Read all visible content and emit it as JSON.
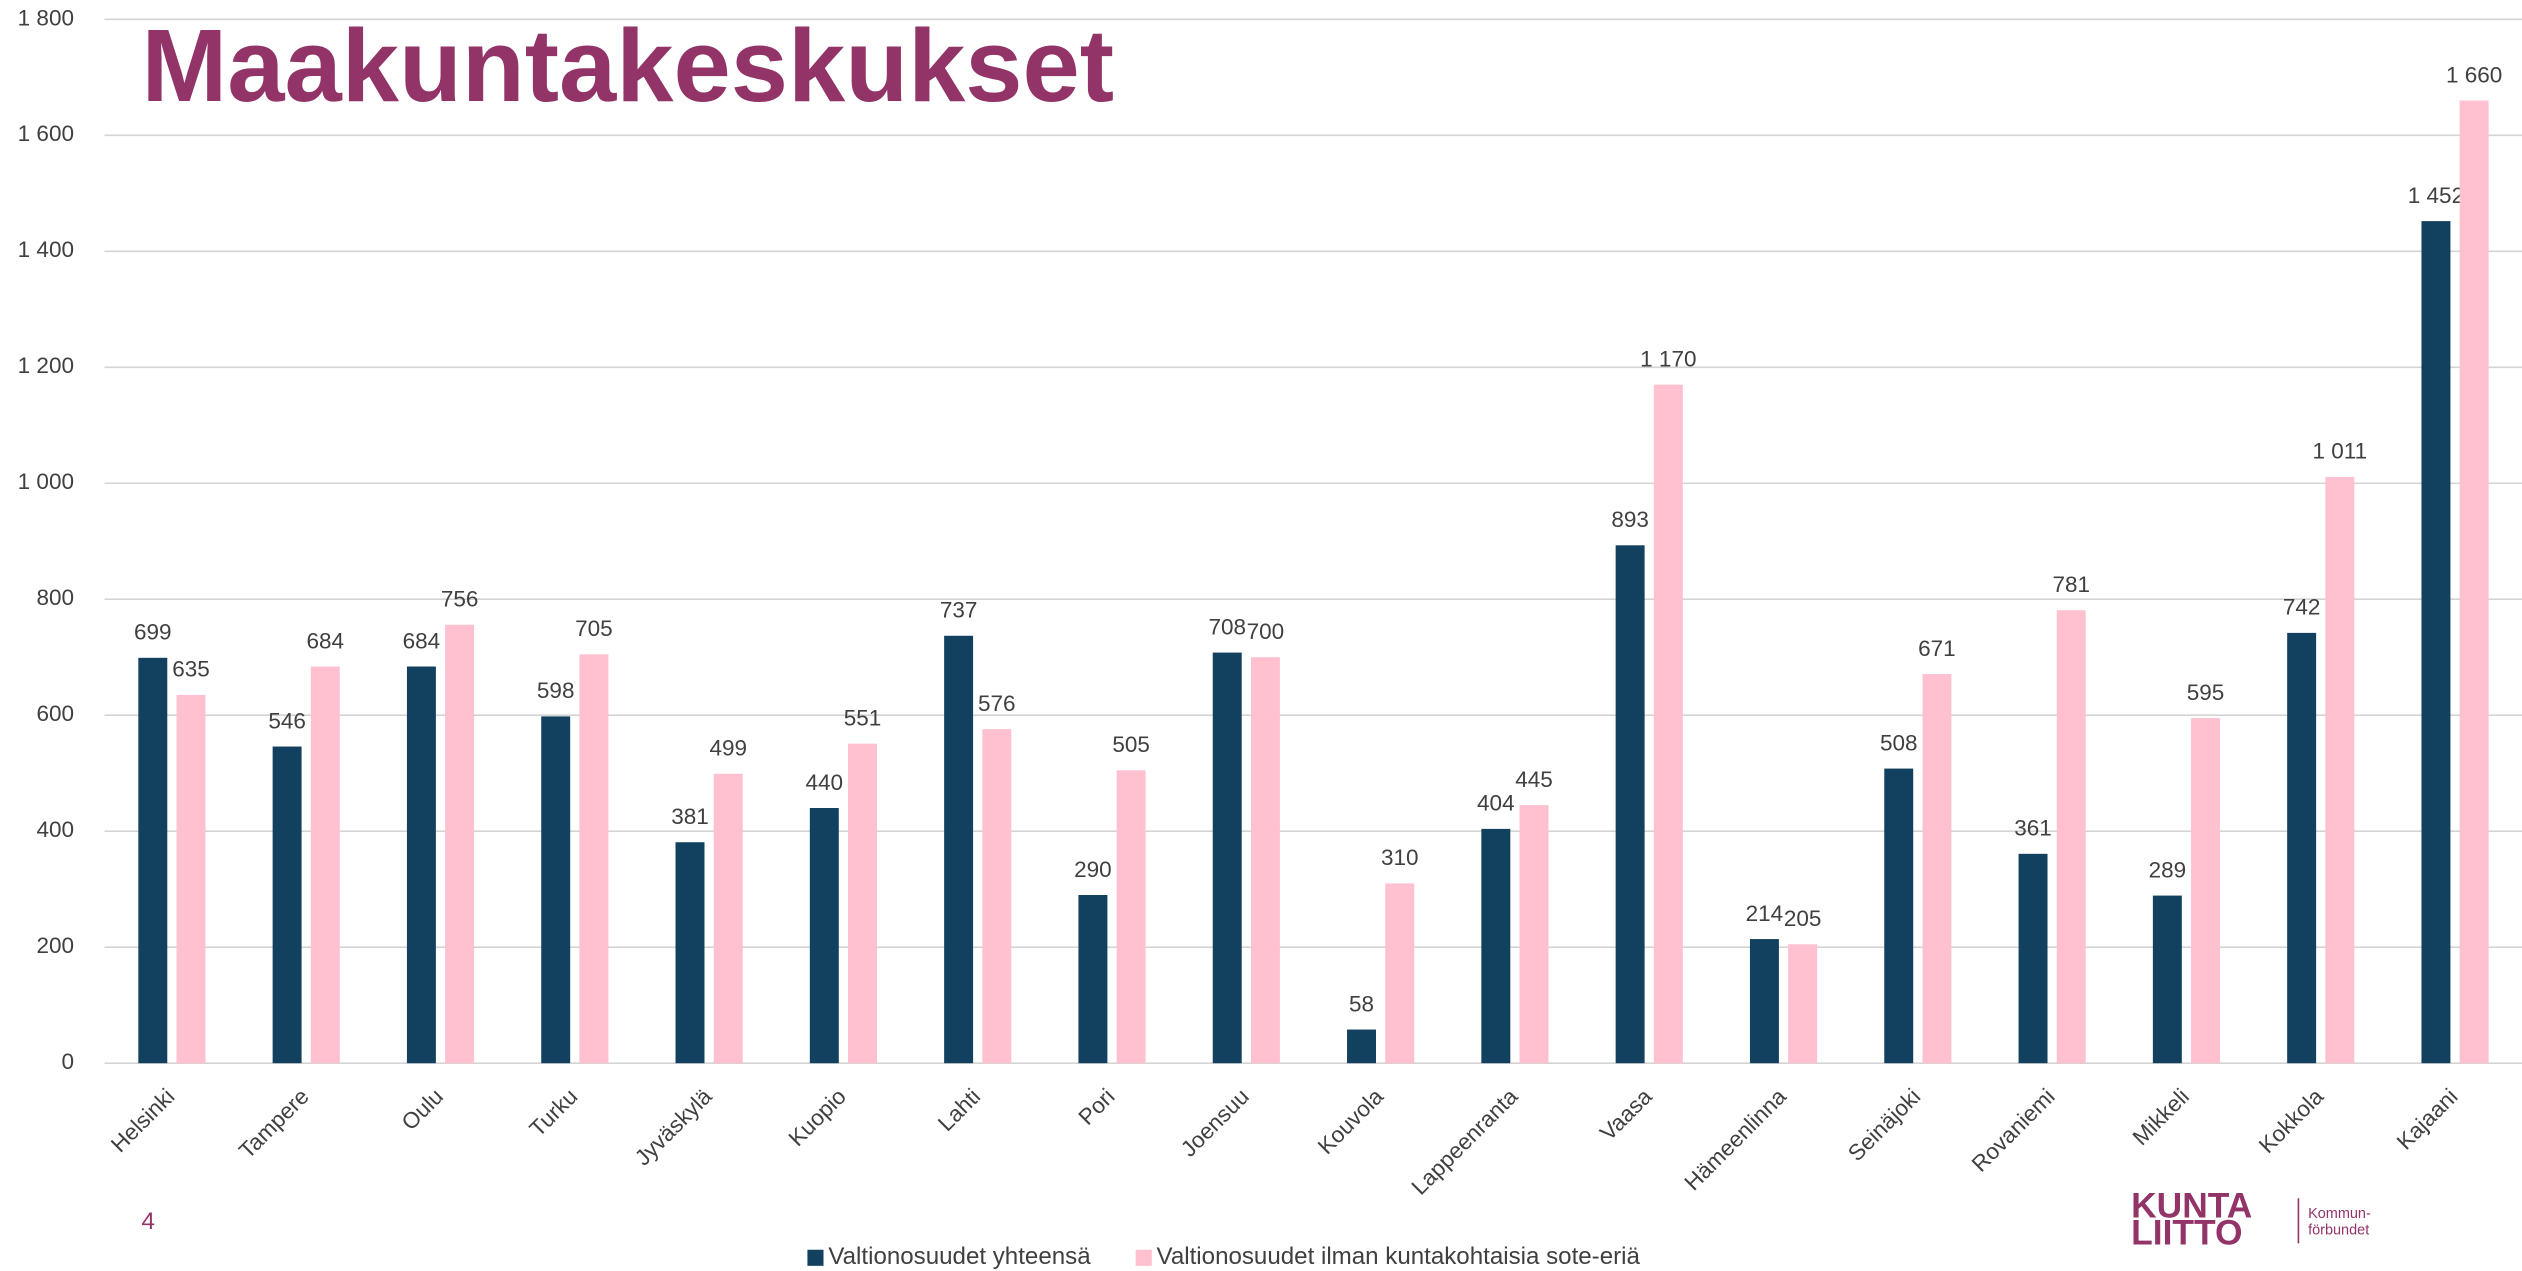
{
  "chart_data": {
    "type": "bar",
    "title": "Maakuntakeskukset",
    "categories": [
      "Helsinki",
      "Tampere",
      "Oulu",
      "Turku",
      "Jyväskylä",
      "Kuopio",
      "Lahti",
      "Pori",
      "Joensuu",
      "Kouvola",
      "Lappeenranta",
      "Vaasa",
      "Hämeenlinna",
      "Seinäjoki",
      "Rovaniemi",
      "Mikkeli",
      "Kokkola",
      "Kajaani"
    ],
    "series": [
      {
        "name": "Valtionosuudet yhteensä",
        "color": "#12405f",
        "values": [
          699,
          546,
          684,
          598,
          381,
          440,
          737,
          290,
          708,
          58,
          404,
          893,
          214,
          508,
          361,
          289,
          742,
          1452
        ],
        "value_labels": [
          "699",
          "546",
          "684",
          "598",
          "381",
          "440",
          "737",
          "290",
          "708",
          "58",
          "404",
          "893",
          "214",
          "508",
          "361",
          "289",
          "742",
          "1 452"
        ]
      },
      {
        "name": "Valtionosuudet ilman kuntakohtaisia sote-eriä",
        "color": "#ffc0cf",
        "values": [
          635,
          684,
          756,
          705,
          499,
          551,
          576,
          505,
          700,
          310,
          445,
          1170,
          205,
          671,
          781,
          595,
          1011,
          1660
        ],
        "value_labels": [
          "635",
          "684",
          "756",
          "705",
          "499",
          "551",
          "576",
          "505",
          "700",
          "310",
          "445",
          "1 170",
          "205",
          "671",
          "781",
          "595",
          "1 011",
          "1 660"
        ]
      }
    ],
    "ylim": [
      0,
      1800
    ],
    "yticks": [
      0,
      200,
      400,
      600,
      800,
      {
        "value": 1000,
        "label": "1 000"
      },
      {
        "value": 1200,
        "label": "1 200"
      },
      {
        "value": 1400,
        "label": "1 400"
      },
      {
        "value": 1600,
        "label": "1 600"
      },
      {
        "value": 1800,
        "label": "1 800"
      }
    ],
    "grid": true,
    "legend": "bottom",
    "page_number": "4",
    "logo": {
      "line1": "KUNTA",
      "line2": "LIITTO",
      "side1": "Kommun-",
      "side2": "förbundet"
    }
  }
}
